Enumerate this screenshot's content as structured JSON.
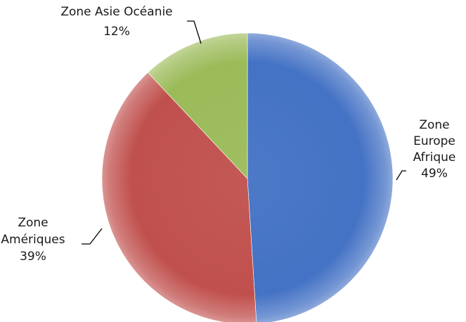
{
  "chart_data": {
    "type": "pie",
    "title": "",
    "slices": [
      {
        "key": "europe-afrique",
        "label_lines": [
          "Zone",
          "Europe",
          "Afrique"
        ],
        "percent_label": "49%",
        "value": 49,
        "color": "#4472c4"
      },
      {
        "key": "ameriques",
        "label_lines": [
          "Zone",
          "Amériques"
        ],
        "percent_label": "39%",
        "value": 39,
        "color": "#c0504d"
      },
      {
        "key": "asie-oceanie",
        "label_lines": [
          "Zone Asie Océanie"
        ],
        "percent_label": "12%",
        "value": 12,
        "color": "#9bbb59"
      }
    ],
    "start_angle": "12 o'clock",
    "direction": "clockwise",
    "legend": "none",
    "style": "3d-gradient"
  }
}
